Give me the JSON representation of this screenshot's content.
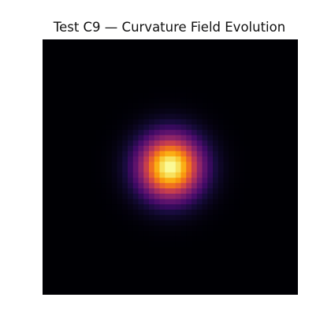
{
  "chart_data": {
    "type": "heatmap",
    "title": "Test C9 — Curvature Field Evolution",
    "xlabel": "",
    "ylabel": "",
    "grid": false,
    "legend": "none",
    "colormap": "inferno",
    "axes_visible": false,
    "grid_size": [
      48,
      48
    ],
    "field": {
      "shape": "gaussian",
      "center": [
        0.5,
        0.5
      ],
      "sigma": 0.084,
      "peak": 1.0,
      "background": 0.0
    },
    "colors": {
      "background": "#000004",
      "peak": "#fcffa4"
    }
  }
}
